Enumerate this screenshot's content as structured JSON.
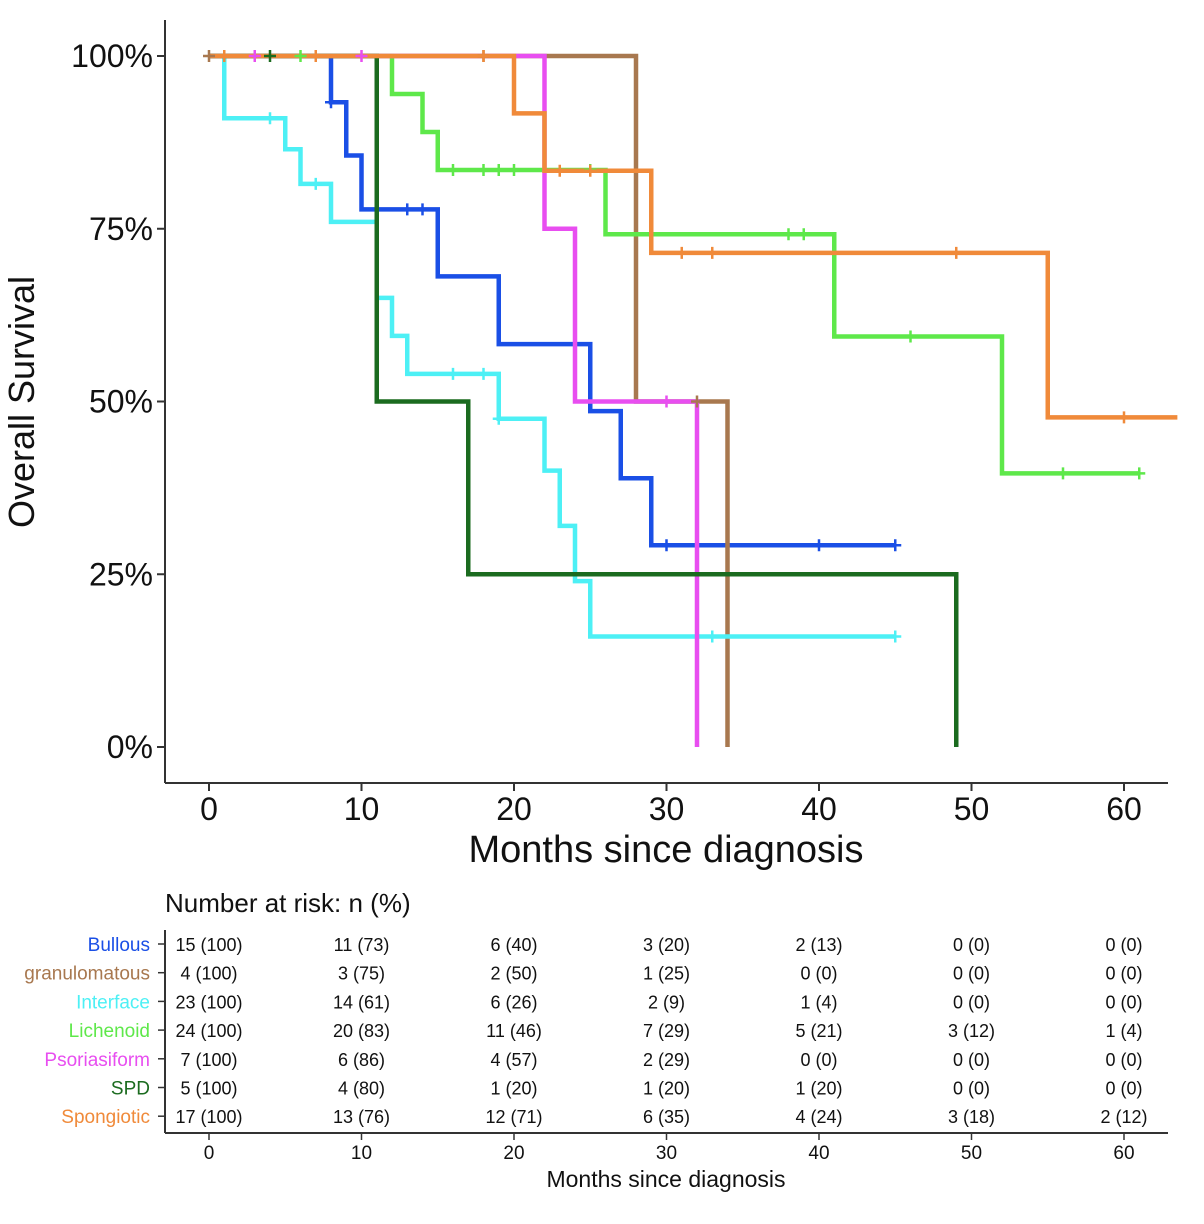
{
  "chart_data": {
    "type": "line",
    "subtype": "kaplan-meier",
    "title": "",
    "xlabel": "Months since diagnosis",
    "ylabel": "Overall Survival",
    "xlim": [
      -3,
      63
    ],
    "ylim": [
      -5,
      105
    ],
    "x_ticks": [
      0,
      10,
      20,
      30,
      40,
      50,
      60
    ],
    "x_tick_labels": [
      "0",
      "10",
      "20",
      "30",
      "40",
      "50",
      "60"
    ],
    "y_ticks": [
      0,
      25,
      50,
      75,
      100
    ],
    "y_tick_labels": [
      "0%",
      "25%",
      "50%",
      "75%",
      "100%"
    ],
    "series": [
      {
        "name": "Bullous",
        "color": "#1a4fe6",
        "end_x": 45,
        "steps": [
          [
            0,
            100
          ],
          [
            8,
            93.3
          ],
          [
            9,
            85.6
          ],
          [
            10,
            77.8
          ],
          [
            15,
            68.1
          ],
          [
            19,
            58.3
          ],
          [
            25,
            48.6
          ],
          [
            27,
            38.9
          ],
          [
            29,
            29.2
          ]
        ],
        "censors": [
          [
            8,
            93.3
          ],
          [
            13,
            77.8
          ],
          [
            14,
            77.8
          ],
          [
            30,
            29.2
          ],
          [
            40,
            29.2
          ],
          [
            45,
            29.2
          ]
        ]
      },
      {
        "name": "granulomatous",
        "color": "#a8784f",
        "end_x": 34,
        "steps": [
          [
            0,
            100
          ],
          [
            28,
            50
          ],
          [
            34,
            0
          ]
        ],
        "censors": [
          [
            0,
            100
          ],
          [
            18,
            100
          ],
          [
            32,
            50
          ]
        ]
      },
      {
        "name": "Interface",
        "color": "#4df0f5",
        "end_x": 45,
        "steps": [
          [
            0,
            100
          ],
          [
            1,
            91
          ],
          [
            5,
            86.5
          ],
          [
            6,
            81.5
          ],
          [
            8,
            76
          ],
          [
            11,
            65
          ],
          [
            12,
            59.5
          ],
          [
            13,
            54
          ],
          [
            19,
            47.5
          ],
          [
            22,
            40
          ],
          [
            23,
            32
          ],
          [
            24,
            24
          ],
          [
            25,
            16
          ]
        ],
        "censors": [
          [
            4,
            91
          ],
          [
            7,
            81.5
          ],
          [
            16,
            54
          ],
          [
            18,
            54
          ],
          [
            19,
            47.5
          ],
          [
            33,
            16
          ],
          [
            45,
            16
          ]
        ]
      },
      {
        "name": "Lichenoid",
        "color": "#5ee84a",
        "end_x": 61,
        "steps": [
          [
            0,
            100
          ],
          [
            12,
            94.5
          ],
          [
            14,
            89
          ],
          [
            15,
            83.5
          ],
          [
            26,
            74.2
          ],
          [
            41,
            59.4
          ],
          [
            52,
            39.6
          ]
        ],
        "censors": [
          [
            6,
            100
          ],
          [
            16,
            83.5
          ],
          [
            18,
            83.5
          ],
          [
            19,
            83.5
          ],
          [
            20,
            83.5
          ],
          [
            25,
            83.5
          ],
          [
            38,
            74.2
          ],
          [
            39,
            74.2
          ],
          [
            46,
            59.4
          ],
          [
            56,
            39.6
          ],
          [
            61,
            39.6
          ]
        ]
      },
      {
        "name": "Psoriasiform",
        "color": "#e84ef0",
        "end_x": 32,
        "steps": [
          [
            0,
            100
          ],
          [
            22,
            75
          ],
          [
            24,
            50
          ],
          [
            32,
            0
          ]
        ],
        "censors": [
          [
            3,
            100
          ],
          [
            10,
            100
          ],
          [
            30,
            50
          ]
        ]
      },
      {
        "name": "SPD",
        "color": "#1b6b1f",
        "end_x": 49,
        "steps": [
          [
            0,
            100
          ],
          [
            11,
            50
          ],
          [
            17,
            25
          ],
          [
            49,
            0
          ]
        ],
        "censors": [
          [
            4,
            100
          ]
        ]
      },
      {
        "name": "Spongiotic",
        "color": "#f08a3a",
        "end_x": 63.5,
        "steps": [
          [
            0,
            100
          ],
          [
            20,
            91.7
          ],
          [
            22,
            83.4
          ],
          [
            29,
            71.5
          ],
          [
            55,
            47.7
          ]
        ],
        "censors": [
          [
            1,
            100
          ],
          [
            7,
            100
          ],
          [
            18,
            100
          ],
          [
            23,
            83.4
          ],
          [
            25,
            83.4
          ],
          [
            31,
            71.5
          ],
          [
            33,
            71.5
          ],
          [
            49,
            71.5
          ],
          [
            60,
            47.7
          ]
        ]
      }
    ],
    "risk_table": {
      "title": "Number at risk: n (%)",
      "xlabel": "Months since diagnosis",
      "times": [
        0,
        10,
        20,
        30,
        40,
        50,
        60
      ],
      "rows": [
        {
          "name": "Bullous",
          "color": "#1a4fe6",
          "values": [
            "15 (100)",
            "11 (73)",
            "6 (40)",
            "3 (20)",
            "2 (13)",
            "0 (0)",
            "0 (0)"
          ]
        },
        {
          "name": "granulomatous",
          "color": "#a8784f",
          "values": [
            "4 (100)",
            "3 (75)",
            "2 (50)",
            "1 (25)",
            "0 (0)",
            "0 (0)",
            "0 (0)"
          ]
        },
        {
          "name": "Interface",
          "color": "#4df0f5",
          "values": [
            "23 (100)",
            "14 (61)",
            "6 (26)",
            "2 (9)",
            "1 (4)",
            "0 (0)",
            "0 (0)"
          ]
        },
        {
          "name": "Lichenoid",
          "color": "#5ee84a",
          "values": [
            "24 (100)",
            "20 (83)",
            "11 (46)",
            "7 (29)",
            "5 (21)",
            "3 (12)",
            "1 (4)"
          ]
        },
        {
          "name": "Psoriasiform",
          "color": "#e84ef0",
          "values": [
            "7 (100)",
            "6 (86)",
            "4 (57)",
            "2 (29)",
            "0 (0)",
            "0 (0)",
            "0 (0)"
          ]
        },
        {
          "name": "SPD",
          "color": "#1b6b1f",
          "values": [
            "5 (100)",
            "4 (80)",
            "1 (20)",
            "1 (20)",
            "1 (20)",
            "0 (0)",
            "0 (0)"
          ]
        },
        {
          "name": "Spongiotic",
          "color": "#f08a3a",
          "values": [
            "17 (100)",
            "13 (76)",
            "12 (71)",
            "6 (35)",
            "4 (24)",
            "3 (18)",
            "2 (12)"
          ]
        }
      ]
    }
  }
}
